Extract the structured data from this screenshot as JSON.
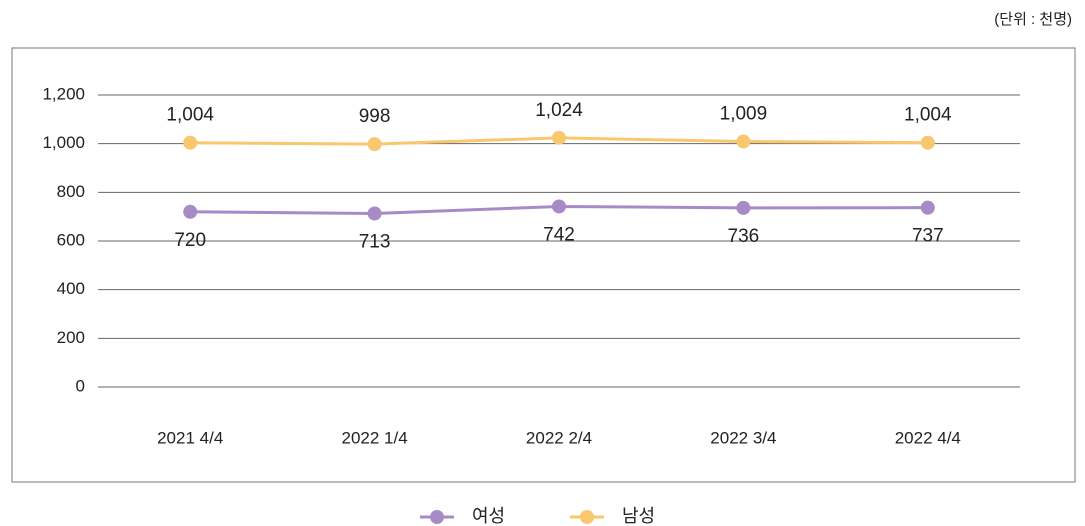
{
  "chart_data": {
    "type": "line",
    "unit_note": "(단위 : 천명)",
    "categories": [
      "2021 4/4",
      "2022 1/4",
      "2022 2/4",
      "2022 3/4",
      "2022 4/4"
    ],
    "series": [
      {
        "name": "여성",
        "color": "#a78bc6",
        "values": [
          720,
          713,
          742,
          736,
          737
        ]
      },
      {
        "name": "남성",
        "color": "#f8c76e",
        "values": [
          1004,
          998,
          1024,
          1009,
          1004
        ],
        "value_labels": [
          "1,004",
          "998",
          "1,024",
          "1,009",
          "1,004"
        ]
      }
    ],
    "ylim": [
      0,
      1200
    ],
    "yticks": [
      0,
      200,
      400,
      600,
      800,
      {
        "value": 1000,
        "label": "1,000"
      },
      {
        "value": 1200,
        "label": "1,200"
      }
    ],
    "grid": true,
    "legend": "bottom"
  }
}
